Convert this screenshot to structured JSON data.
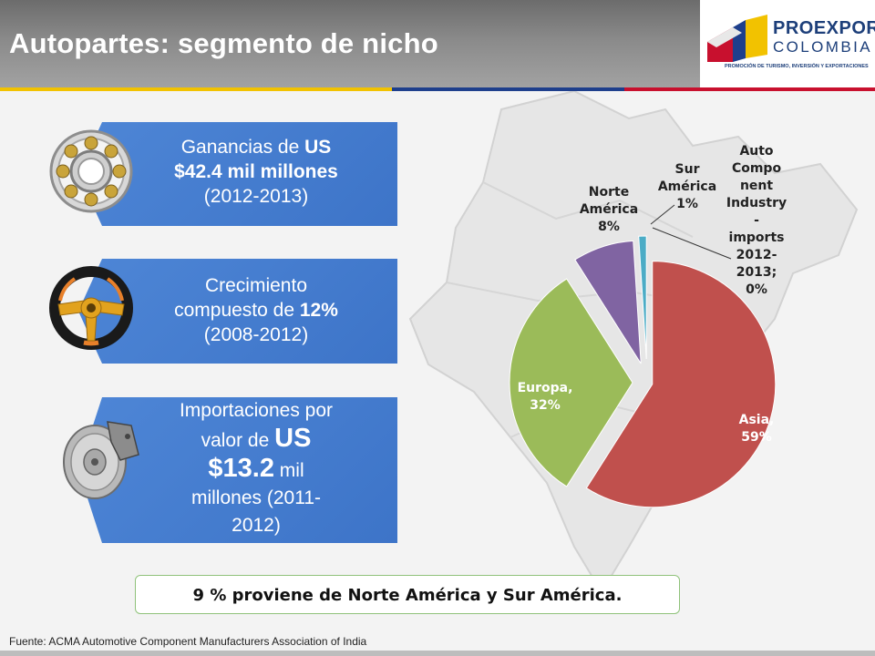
{
  "header": {
    "title": "Autopartes: segmento de nicho",
    "logo_line1": "PROEXPORT",
    "logo_line2": "COLOMBIA",
    "logo_tagline": "PROMOCIÓN DE TURISMO, INVERSIÓN Y EXPORTACIONES"
  },
  "colors": {
    "header_gray": "#8a8a8a",
    "card_blue": "#4a80d2",
    "stripe_yellow": "#f2c200",
    "stripe_blue": "#1e3f8c",
    "stripe_red": "#c8102e",
    "asia": "#c0504d",
    "europa": "#9bbb59",
    "norte_america": "#8064a2",
    "sur_america": "#4bacc6"
  },
  "cards": [
    {
      "icon": "ball-bearing-icon",
      "text_a": "Ganancias de ",
      "text_b": "US",
      "text_c": "$42.4 mil millones",
      "text_d": "(2012-2013)"
    },
    {
      "icon": "steering-wheel-icon",
      "text_a": "Crecimiento",
      "text_b": "compuesto de ",
      "text_c": "12%",
      "text_d": "(2008-2012)"
    },
    {
      "icon": "brake-disc-icon",
      "text_a": "Importaciones por",
      "text_b": "valor de ",
      "text_c": "US",
      "text_d": "$13.2",
      "text_e": " mil",
      "text_f": "millones (2011-",
      "text_g": "2012)"
    }
  ],
  "chart_data": {
    "type": "pie",
    "title": "",
    "slices": [
      {
        "label": "Asia",
        "value": 59,
        "display": "Asia,|59%"
      },
      {
        "label": "Europa",
        "value": 32,
        "display": "Europa,|32%"
      },
      {
        "label": "Norte América",
        "value": 8,
        "display": "Norte|América|8%"
      },
      {
        "label": "Sur América",
        "value": 1,
        "display": "Sur|América|1%"
      },
      {
        "label": "Auto Component Industry - imports 2012-2013",
        "value": 0,
        "display": "Auto|Compo|nent|Industry|-|imports|2012-|2013;|0%"
      }
    ],
    "exploded": true,
    "legend": "none"
  },
  "highlight": "9 % proviene de Norte América y Sur América.",
  "source": "Fuente: ACMA Automotive Component Manufacturers Association of India"
}
